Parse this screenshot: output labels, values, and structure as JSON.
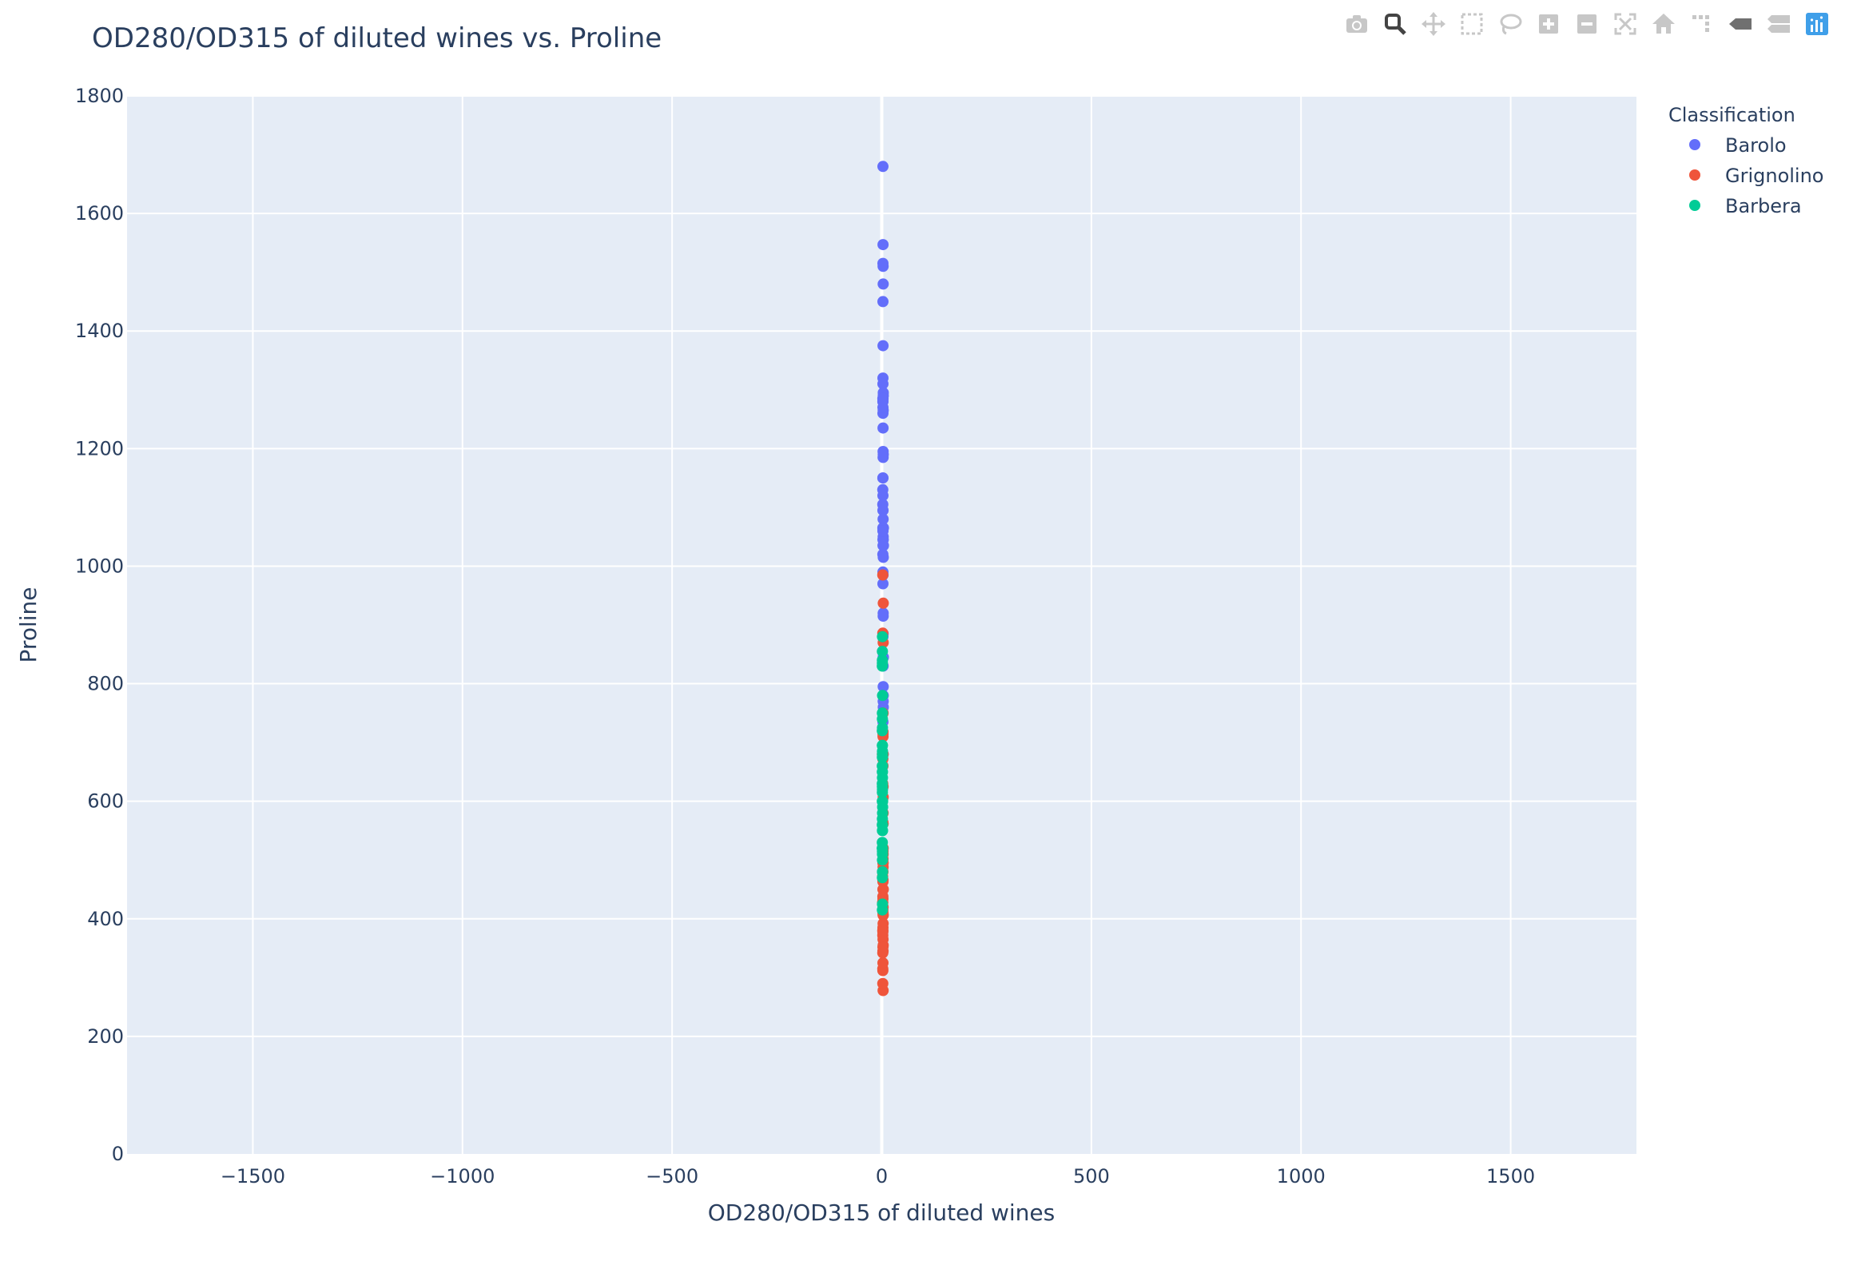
{
  "chart_data": {
    "type": "scatter",
    "title": "OD280/OD315 of diluted wines vs. Proline",
    "xlabel": "OD280/OD315 of diluted wines",
    "ylabel": "Proline",
    "xlim": [
      -1800,
      1800
    ],
    "ylim": [
      0,
      1800
    ],
    "xticks": [
      -1500,
      -1000,
      -500,
      0,
      500,
      1000,
      1500
    ],
    "yticks": [
      0,
      200,
      400,
      600,
      800,
      1000,
      1200,
      1400,
      1600,
      1800
    ],
    "xtick_labels": [
      "−1500",
      "−1000",
      "−500",
      "0",
      "500",
      "1000",
      "1500"
    ],
    "ytick_labels": [
      "0",
      "200",
      "400",
      "600",
      "800",
      "1000",
      "1200",
      "1400",
      "1600",
      "1800"
    ],
    "grid": true,
    "legend": {
      "title": "Classification",
      "placement": "top-right"
    },
    "series": [
      {
        "name": "Barolo",
        "color": "#636efa",
        "points": [
          [
            3.92,
            1065
          ],
          [
            3.4,
            1050
          ],
          [
            3.17,
            1185
          ],
          [
            3.45,
            1480
          ],
          [
            2.93,
            735
          ],
          [
            2.85,
            1450
          ],
          [
            3.58,
            1290
          ],
          [
            3.58,
            1295
          ],
          [
            2.85,
            1045
          ],
          [
            3.55,
            1045
          ],
          [
            3.17,
            1510
          ],
          [
            2.82,
            1280
          ],
          [
            2.9,
            1320
          ],
          [
            2.73,
            1150
          ],
          [
            3.0,
            1547
          ],
          [
            2.88,
            1310
          ],
          [
            2.65,
            1280
          ],
          [
            2.57,
            1130
          ],
          [
            2.82,
            1680
          ],
          [
            3.36,
            845
          ],
          [
            3.71,
            780
          ],
          [
            3.52,
            770
          ],
          [
            4.0,
            1035
          ],
          [
            3.63,
            1015
          ],
          [
            3.82,
            845
          ],
          [
            3.2,
            830
          ],
          [
            3.22,
            1195
          ],
          [
            2.77,
            1285
          ],
          [
            3.4,
            915
          ],
          [
            3.59,
            1035
          ],
          [
            2.71,
            1285
          ],
          [
            2.88,
            1515
          ],
          [
            2.87,
            990
          ],
          [
            3.0,
            1235
          ],
          [
            2.87,
            1095
          ],
          [
            3.47,
            920
          ],
          [
            2.78,
            880
          ],
          [
            2.51,
            1105
          ],
          [
            2.69,
            1020
          ],
          [
            3.53,
            760
          ],
          [
            3.38,
            795
          ],
          [
            3.0,
            1035
          ],
          [
            3.0,
            1095
          ],
          [
            3.35,
            680
          ],
          [
            3.33,
            885
          ],
          [
            3.33,
            1080
          ],
          [
            2.75,
            1065
          ],
          [
            3.1,
            985
          ],
          [
            2.88,
            1060
          ],
          [
            2.84,
            1260
          ],
          [
            2.93,
            1150
          ],
          [
            3.36,
            1265
          ],
          [
            3.69,
            1190
          ],
          [
            3.1,
            1375
          ],
          [
            2.84,
            1060
          ],
          [
            2.82,
            1120
          ],
          [
            2.78,
            970
          ],
          [
            2.87,
            1270
          ],
          [
            3.0,
            1285
          ]
        ]
      },
      {
        "name": "Grignolino",
        "color": "#ef553b",
        "points": [
          [
            1.82,
            520
          ],
          [
            1.59,
            680
          ],
          [
            2.87,
            450
          ],
          [
            2.3,
            630
          ],
          [
            3.18,
            420
          ],
          [
            3.48,
            355
          ],
          [
            1.93,
            678
          ],
          [
            3.07,
            502
          ],
          [
            3.16,
            510
          ],
          [
            2.78,
            750
          ],
          [
            3.12,
            718
          ],
          [
            3.5,
            870
          ],
          [
            3.13,
            410
          ],
          [
            2.14,
            472
          ],
          [
            2.48,
            985
          ],
          [
            2.52,
            886
          ],
          [
            2.31,
            428
          ],
          [
            3.16,
            392
          ],
          [
            2.26,
            500
          ],
          [
            3.19,
            750
          ],
          [
            2.87,
            463
          ],
          [
            3.33,
            278
          ],
          [
            2.96,
            714
          ],
          [
            2.12,
            630
          ],
          [
            3.05,
            515
          ],
          [
            3.39,
            520
          ],
          [
            3.69,
            450
          ],
          [
            3.12,
            495
          ],
          [
            3.21,
            562
          ],
          [
            3.3,
            680
          ],
          [
            2.01,
            625
          ],
          [
            2.83,
            480
          ],
          [
            3.3,
            450
          ],
          [
            2.96,
            495
          ],
          [
            2.5,
            290
          ],
          [
            3.12,
            345
          ],
          [
            3.59,
            937
          ],
          [
            2.69,
            625
          ],
          [
            2.27,
            428
          ],
          [
            2.87,
            660
          ],
          [
            3.5,
            406
          ],
          [
            3.13,
            710
          ],
          [
            2.93,
            562
          ],
          [
            2.69,
            438
          ],
          [
            2.71,
            415
          ],
          [
            2.65,
            672
          ],
          [
            2.4,
            315
          ],
          [
            2.77,
            510
          ],
          [
            3.3,
            488
          ],
          [
            2.73,
            312
          ],
          [
            3.02,
            680
          ],
          [
            3.14,
            562
          ],
          [
            2.77,
            325
          ],
          [
            3.37,
            607
          ],
          [
            2.84,
            434
          ],
          [
            2.78,
            385
          ],
          [
            3.21,
            407
          ],
          [
            3.16,
            495
          ],
          [
            2.86,
            345
          ],
          [
            2.4,
            372
          ],
          [
            2.78,
            564
          ],
          [
            3.26,
            625
          ],
          [
            2.75,
            465
          ],
          [
            3.13,
            365
          ],
          [
            2.72,
            380
          ],
          [
            2.46,
            380
          ],
          [
            2.72,
            378
          ],
          [
            2.84,
            352
          ],
          [
            3.03,
            466
          ],
          [
            2.5,
            342
          ],
          [
            3.16,
            580
          ]
        ]
      },
      {
        "name": "Barbera",
        "color": "#00cc96",
        "points": [
          [
            1.29,
            630
          ],
          [
            1.42,
            530
          ],
          [
            1.36,
            560
          ],
          [
            1.29,
            600
          ],
          [
            1.51,
            650
          ],
          [
            1.58,
            695
          ],
          [
            1.27,
            720
          ],
          [
            1.69,
            515
          ],
          [
            1.82,
            580
          ],
          [
            2.15,
            590
          ],
          [
            2.05,
            600
          ],
          [
            2.0,
            780
          ],
          [
            1.33,
            520
          ],
          [
            1.62,
            550
          ],
          [
            1.47,
            855
          ],
          [
            1.33,
            830
          ],
          [
            1.51,
            415
          ],
          [
            1.55,
            625
          ],
          [
            1.48,
            650
          ],
          [
            1.64,
            550
          ],
          [
            1.73,
            500
          ],
          [
            1.96,
            480
          ],
          [
            1.78,
            425
          ],
          [
            1.58,
            675
          ],
          [
            1.75,
            640
          ],
          [
            1.68,
            725
          ],
          [
            1.75,
            480
          ],
          [
            1.68,
            880
          ],
          [
            1.8,
            660
          ],
          [
            1.75,
            620
          ],
          [
            1.56,
            520
          ],
          [
            1.62,
            680
          ],
          [
            1.6,
            570
          ],
          [
            1.74,
            675
          ],
          [
            1.56,
            615
          ],
          [
            1.55,
            520
          ],
          [
            1.56,
            695
          ],
          [
            1.62,
            685
          ],
          [
            1.6,
            750
          ],
          [
            1.74,
            510
          ],
          [
            1.56,
            470
          ],
          [
            1.27,
            660
          ],
          [
            1.58,
            740
          ],
          [
            1.74,
            750
          ],
          [
            1.59,
            835
          ],
          [
            1.56,
            840
          ],
          [
            1.62,
            560
          ]
        ]
      }
    ]
  },
  "modebar": {
    "icons": [
      "camera-icon",
      "zoom-icon",
      "pan-icon",
      "box-select-icon",
      "lasso-select-icon",
      "zoom-in-icon",
      "zoom-out-icon",
      "autoscale-icon",
      "reset-axes-icon",
      "spike-lines-icon",
      "hover-closest-icon",
      "hover-compare-icon",
      "plotly-logo-icon"
    ],
    "active": "zoom-icon",
    "icon_color": "#c7c7c7",
    "active_color": "#444444",
    "logo_color": "#3f9fe9"
  },
  "style": {
    "plot_bg": "#e5ecf6",
    "grid_color": "#ffffff",
    "text_color": "#2a3f5f"
  }
}
